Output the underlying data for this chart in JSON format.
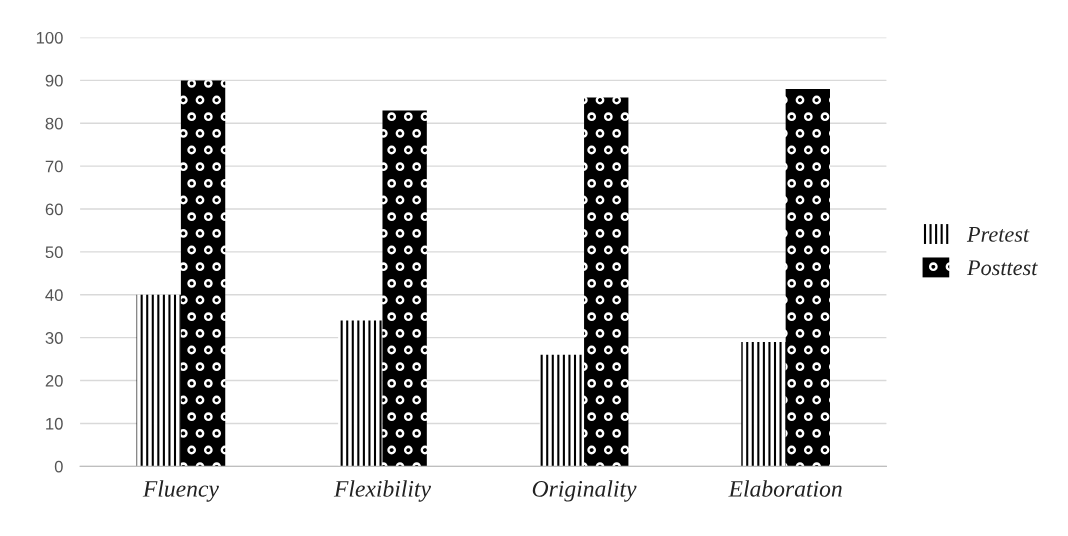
{
  "chart_data": {
    "type": "bar",
    "categories": [
      "Fluency",
      "Flexibility",
      "Originality",
      "Elaboration"
    ],
    "series": [
      {
        "name": "Pretest",
        "color": "#000000",
        "values": [
          40,
          34,
          26,
          29
        ]
      },
      {
        "name": "Posttest",
        "color": "#000000",
        "values": [
          90,
          83,
          86,
          88
        ]
      }
    ],
    "ylim": [
      0,
      100
    ],
    "yticks": [
      0,
      10,
      20,
      30,
      40,
      50,
      60,
      70,
      80,
      90,
      100
    ],
    "grid": "y",
    "legend": "right"
  }
}
